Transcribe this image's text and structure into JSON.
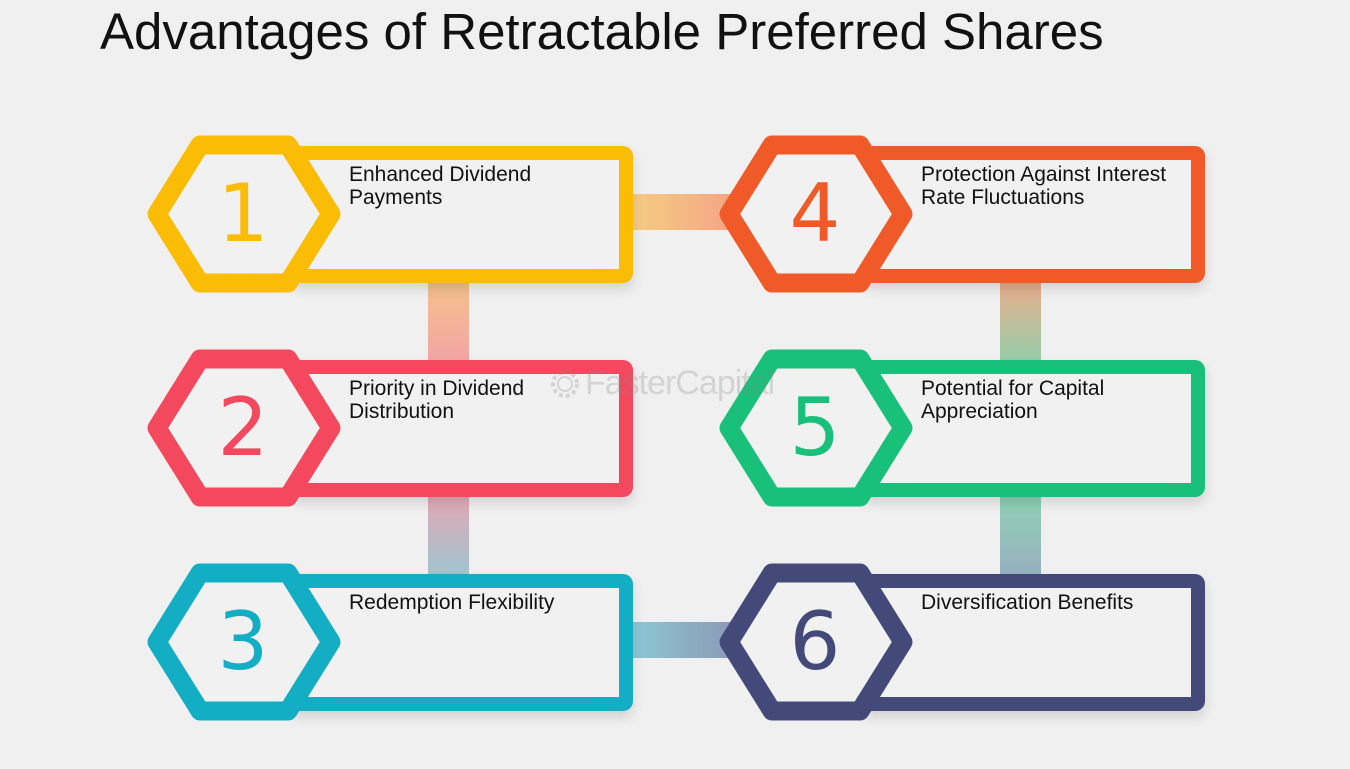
{
  "title": "Advantages of Retractable Preferred Shares",
  "watermark": "FasterCapital",
  "items": [
    {
      "number": "1",
      "label": "Enhanced Dividend Payments",
      "color": "#fbbc05"
    },
    {
      "number": "2",
      "label": "Priority in Dividend Distribution",
      "color": "#f3485d"
    },
    {
      "number": "3",
      "label": "Redemption Flexibility",
      "color": "#13aec3"
    },
    {
      "number": "4",
      "label": "Protection Against Interest Rate Fluctuations",
      "color": "#ef5a28"
    },
    {
      "number": "5",
      "label": "Potential for Capital Appreciation",
      "color": "#18c07a"
    },
    {
      "number": "6",
      "label": "Diversification Benefits",
      "color": "#434a7a"
    }
  ]
}
